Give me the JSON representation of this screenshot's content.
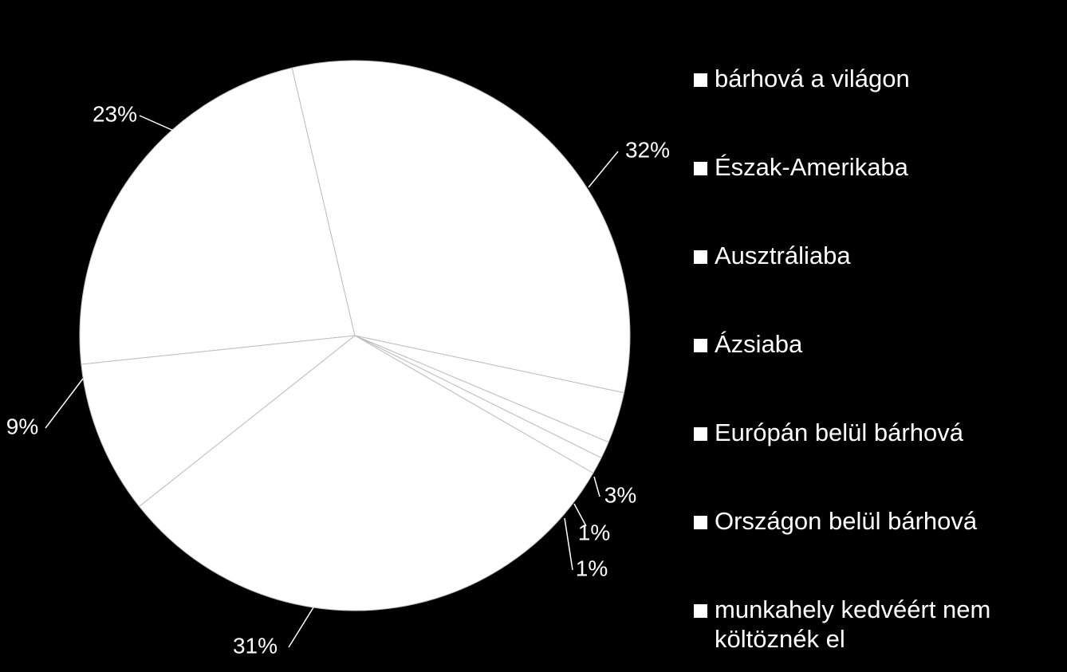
{
  "chart_data": {
    "type": "pie",
    "categories": [
      "bárhová a világon",
      "Észak-Amerikaba",
      "Ausztráliaba",
      "Ázsiaba",
      "Európán belül bárhová",
      "Országon belül bárhová",
      "munkahely kedvéért nem költöznék el"
    ],
    "values": [
      23,
      32,
      3,
      1,
      1,
      31,
      9
    ],
    "data_labels": [
      "23%",
      "32%",
      "3%",
      "1%",
      "1%",
      "31%",
      "9%"
    ],
    "title": "",
    "legend_position": "right",
    "colors": {
      "background": "#000000",
      "slice_fill": "#ffffff",
      "slice_stroke": "#bdbdbd",
      "text": "#ffffff"
    }
  }
}
